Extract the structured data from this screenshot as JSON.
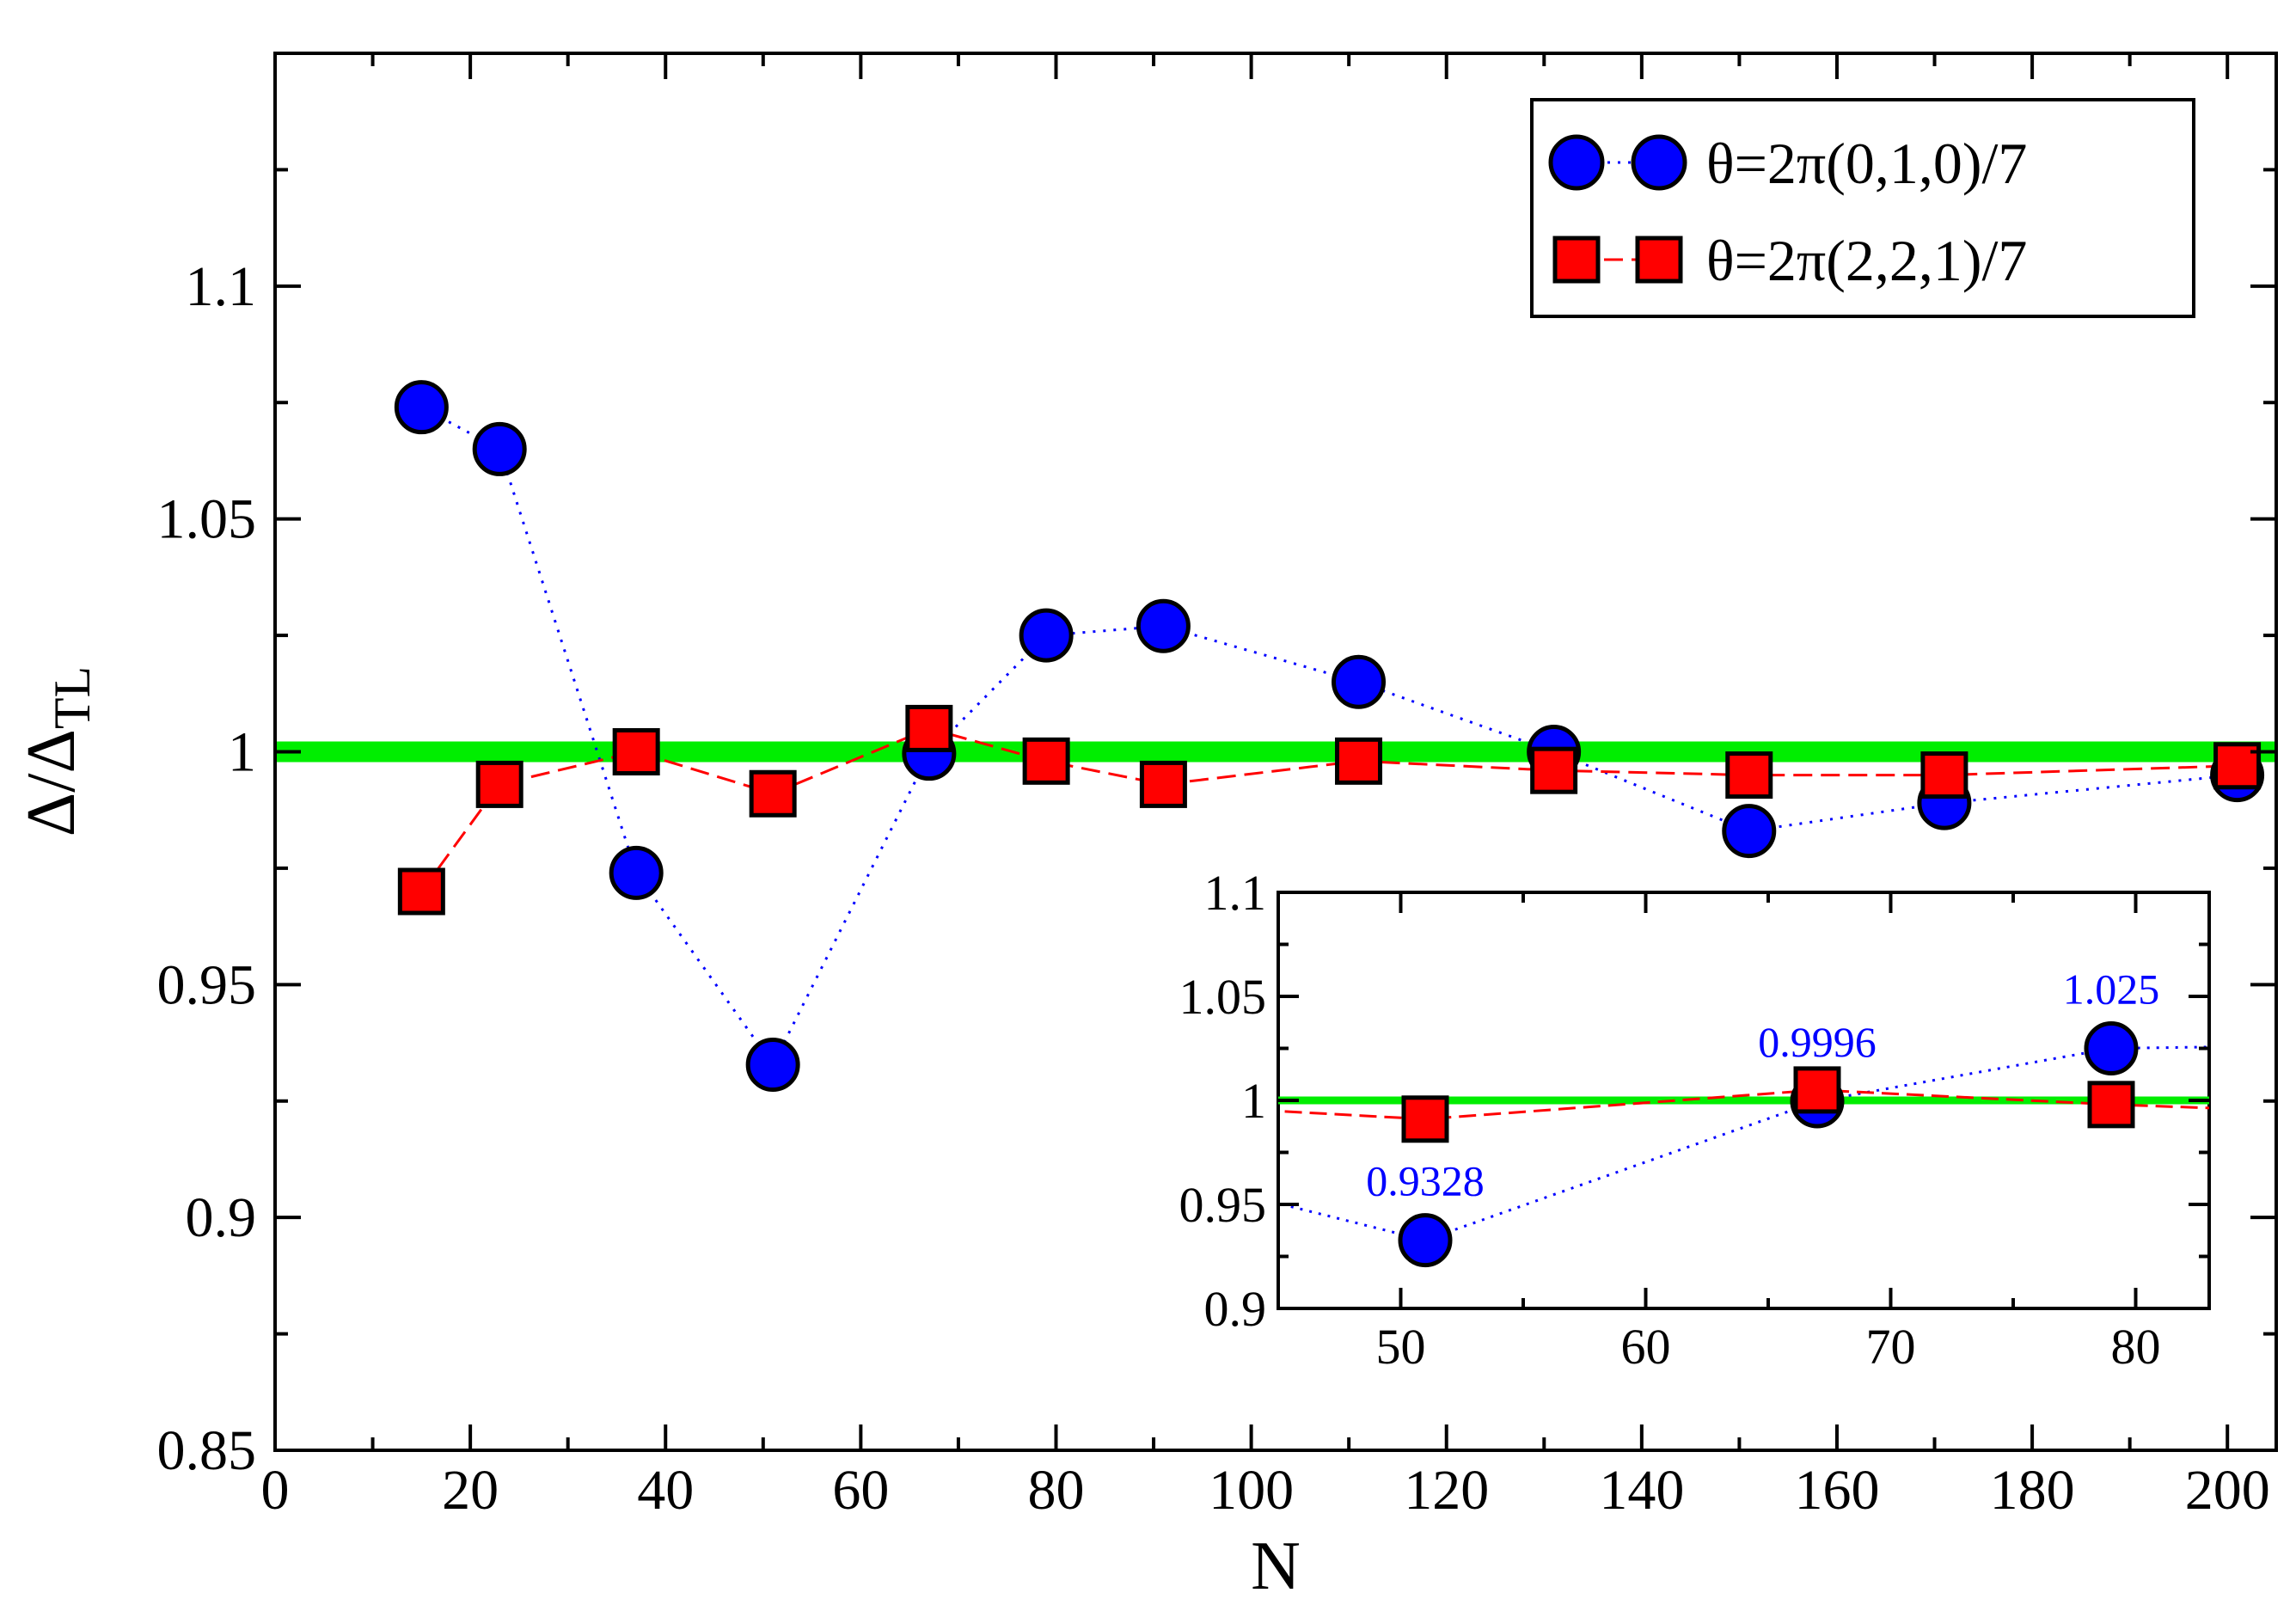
{
  "chart_data": {
    "type": "scatter",
    "title": "",
    "xlabel": "N",
    "ylabel": "Δ/Δ",
    "ylabel_sub": "TL",
    "xlim": [
      0,
      205
    ],
    "ylim": [
      0.85,
      1.15
    ],
    "xticks": [
      "0",
      "20",
      "40",
      "60",
      "80",
      "100",
      "120",
      "140",
      "160",
      "180",
      "200"
    ],
    "yticks": [
      "0.85",
      "0.9",
      "0.95",
      "1",
      "1.05",
      "1.1"
    ],
    "reference_line": {
      "y": 1.0,
      "color": "#00ee00"
    },
    "legend_position": "top-right",
    "series": [
      {
        "name": "θ=2π(0,1,0)/7",
        "marker": "circle",
        "line": "dotted",
        "color": "#0000ff",
        "x": [
          15,
          23,
          37,
          51,
          67,
          79,
          91,
          111,
          131,
          151,
          171,
          201
        ],
        "y": [
          1.074,
          1.065,
          0.974,
          0.9328,
          0.9996,
          1.025,
          1.027,
          1.015,
          1.0,
          0.983,
          0.989,
          0.995
        ]
      },
      {
        "name": "θ=2π(2,2,1)/7",
        "marker": "square",
        "line": "dashed",
        "color": "#ff0000",
        "x": [
          15,
          23,
          37,
          51,
          67,
          79,
          91,
          111,
          131,
          151,
          171,
          201
        ],
        "y": [
          0.97,
          0.993,
          1.0,
          0.991,
          1.005,
          0.998,
          0.993,
          0.998,
          0.996,
          0.995,
          0.995,
          0.997
        ]
      }
    ],
    "inset": {
      "xlim": [
        45,
        83
      ],
      "ylim": [
        0.9,
        1.1
      ],
      "xticks": [
        "50",
        "60",
        "70",
        "80"
      ],
      "yticks": [
        "0.9",
        "0.95",
        "1",
        "1.05",
        "1.1"
      ],
      "annotations": [
        {
          "x": 51,
          "y": 0.9328,
          "text": "0.9328"
        },
        {
          "x": 67,
          "y": 0.9996,
          "text": "0.9996"
        },
        {
          "x": 79,
          "y": 1.025,
          "text": "1.025"
        }
      ]
    }
  }
}
